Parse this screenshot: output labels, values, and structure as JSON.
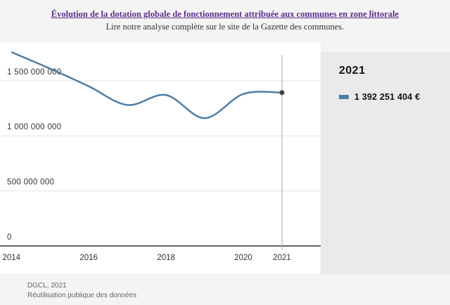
{
  "header": {
    "title": "Évolution de la dotation globale de fonctionnement attribuée aux communes en zone littorale",
    "subtitle": "Lire notre analyse complète sur le site de la Gazette des communes."
  },
  "legend": {
    "year": "2021",
    "value": "1 392 251 404 €",
    "swatch_color": "#4a7ea8"
  },
  "footer": {
    "source": "DGCL, 2021",
    "note": "Réutilisation publique des données"
  },
  "chart_data": {
    "type": "line",
    "title": "Évolution de la dotation globale de fonctionnement attribuée aux communes en zone littorale",
    "xlabel": "",
    "ylabel": "",
    "x": [
      2014,
      2015,
      2016,
      2017,
      2018,
      2019,
      2020,
      2021
    ],
    "series": [
      {
        "name": "Dotation globale de fonctionnement",
        "color": "#4a7ea8",
        "values": [
          1760000000,
          1610000000,
          1450000000,
          1280000000,
          1370000000,
          1160000000,
          1380000000,
          1392251404
        ]
      }
    ],
    "xticks": [
      2014,
      2016,
      2018,
      2020,
      2021
    ],
    "xtick_labels": [
      "2014",
      "2016",
      "2018",
      "2020",
      "2021"
    ],
    "yticks": [
      0,
      500000000,
      1000000000,
      1500000000
    ],
    "ytick_labels": [
      "0",
      "500 000 000",
      "1 000 000 000",
      "1 500 000 000"
    ],
    "xlim": [
      2013.85,
      2022.0
    ],
    "ylim": [
      0,
      1850000000
    ],
    "highlight_x": 2021,
    "grid": true
  }
}
